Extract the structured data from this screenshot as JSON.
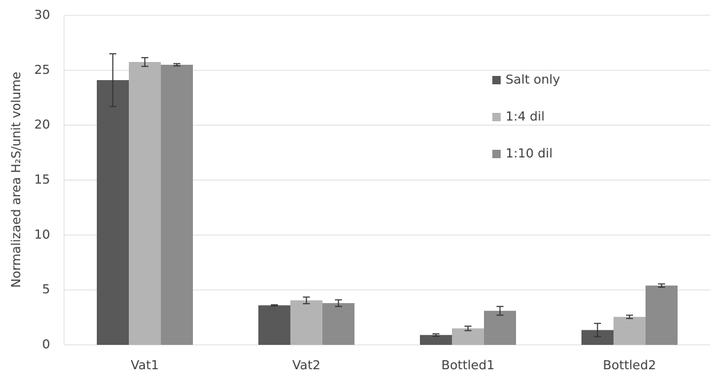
{
  "chart_data": {
    "type": "bar",
    "y_label": "Normalizaed area H₂S/unit volume",
    "categories": [
      "Vat1",
      "Vat2",
      "Bottled1",
      "Bottled2"
    ],
    "series": [
      {
        "name": "Salt only",
        "color": "#595959",
        "values": [
          24.1,
          3.6,
          0.9,
          1.35
        ],
        "errors": [
          2.4,
          0.05,
          0.1,
          0.6
        ]
      },
      {
        "name": "1:4 dil",
        "color": "#b4b4b4",
        "values": [
          25.75,
          4.05,
          1.5,
          2.55
        ],
        "errors": [
          0.4,
          0.3,
          0.2,
          0.15
        ]
      },
      {
        "name": "1:10 dil",
        "color": "#8c8c8c",
        "values": [
          25.5,
          3.8,
          3.1,
          5.4
        ],
        "errors": [
          0.1,
          0.3,
          0.4,
          0.15
        ]
      }
    ],
    "ylim": [
      0,
      30
    ],
    "yticks": [
      0,
      5,
      10,
      15,
      20,
      25,
      30
    ],
    "grid": true
  }
}
